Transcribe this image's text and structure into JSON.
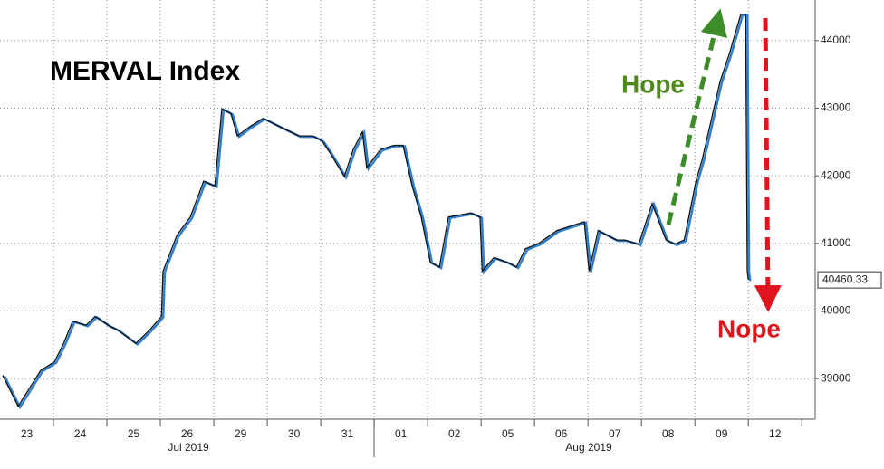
{
  "chart_data": {
    "type": "line",
    "title": "MERVAL Index",
    "annotations": [
      "Hope",
      "Nope"
    ],
    "categories": [
      "23",
      "24",
      "25",
      "26",
      "29",
      "30",
      "31",
      "01",
      "02",
      "05",
      "06",
      "07",
      "08",
      "09",
      "12"
    ],
    "periods": [
      "Jul 2019",
      "Aug 2019"
    ],
    "xlim": [
      0,
      15.25
    ],
    "ylim": [
      38400,
      44600
    ],
    "yticks": [
      39000,
      40000,
      41000,
      42000,
      43000,
      44000
    ],
    "grid": true,
    "last_price": 40460.33,
    "series": [
      {
        "color": "#111111",
        "x": [
          0.05,
          0.34,
          0.76,
          1.02,
          1.19,
          1.36,
          1.61,
          1.78,
          2.02,
          2.2,
          2.54,
          2.8,
          3.02,
          3.05,
          3.31,
          3.56,
          3.81,
          4.02,
          4.15,
          4.32,
          4.44,
          4.66,
          4.92,
          5.25,
          5.59,
          5.85,
          6.02,
          6.19,
          6.44,
          6.61,
          6.78,
          6.86,
          7.12,
          7.37,
          7.54,
          7.71,
          7.88,
          8.05,
          8.22,
          8.39,
          8.81,
          8.98,
          9.02,
          9.24,
          9.49,
          9.66,
          9.83,
          10.08,
          10.42,
          10.93,
          11.02,
          11.19,
          11.53,
          11.69,
          11.95,
          12.2,
          12.46,
          12.63,
          12.8,
          13.02,
          13.14,
          13.47,
          13.64,
          13.86,
          13.95,
          13.98,
          14.0
        ],
        "values": [
          39050,
          38590,
          39120,
          39250,
          39520,
          39850,
          39790,
          39920,
          39790,
          39720,
          39520,
          39720,
          39920,
          40590,
          41120,
          41390,
          41920,
          41850,
          42990,
          42920,
          42590,
          42720,
          42850,
          42720,
          42590,
          42590,
          42520,
          42320,
          41990,
          42390,
          42650,
          42120,
          42390,
          42450,
          42450,
          41850,
          41390,
          40720,
          40650,
          41390,
          41450,
          41390,
          40590,
          40790,
          40720,
          40650,
          40920,
          41000,
          41190,
          41320,
          40590,
          41190,
          41050,
          41050,
          40990,
          41590,
          41050,
          40990,
          41050,
          41920,
          42250,
          43390,
          43790,
          44390,
          44390,
          40590,
          40460.33
        ]
      }
    ]
  }
}
